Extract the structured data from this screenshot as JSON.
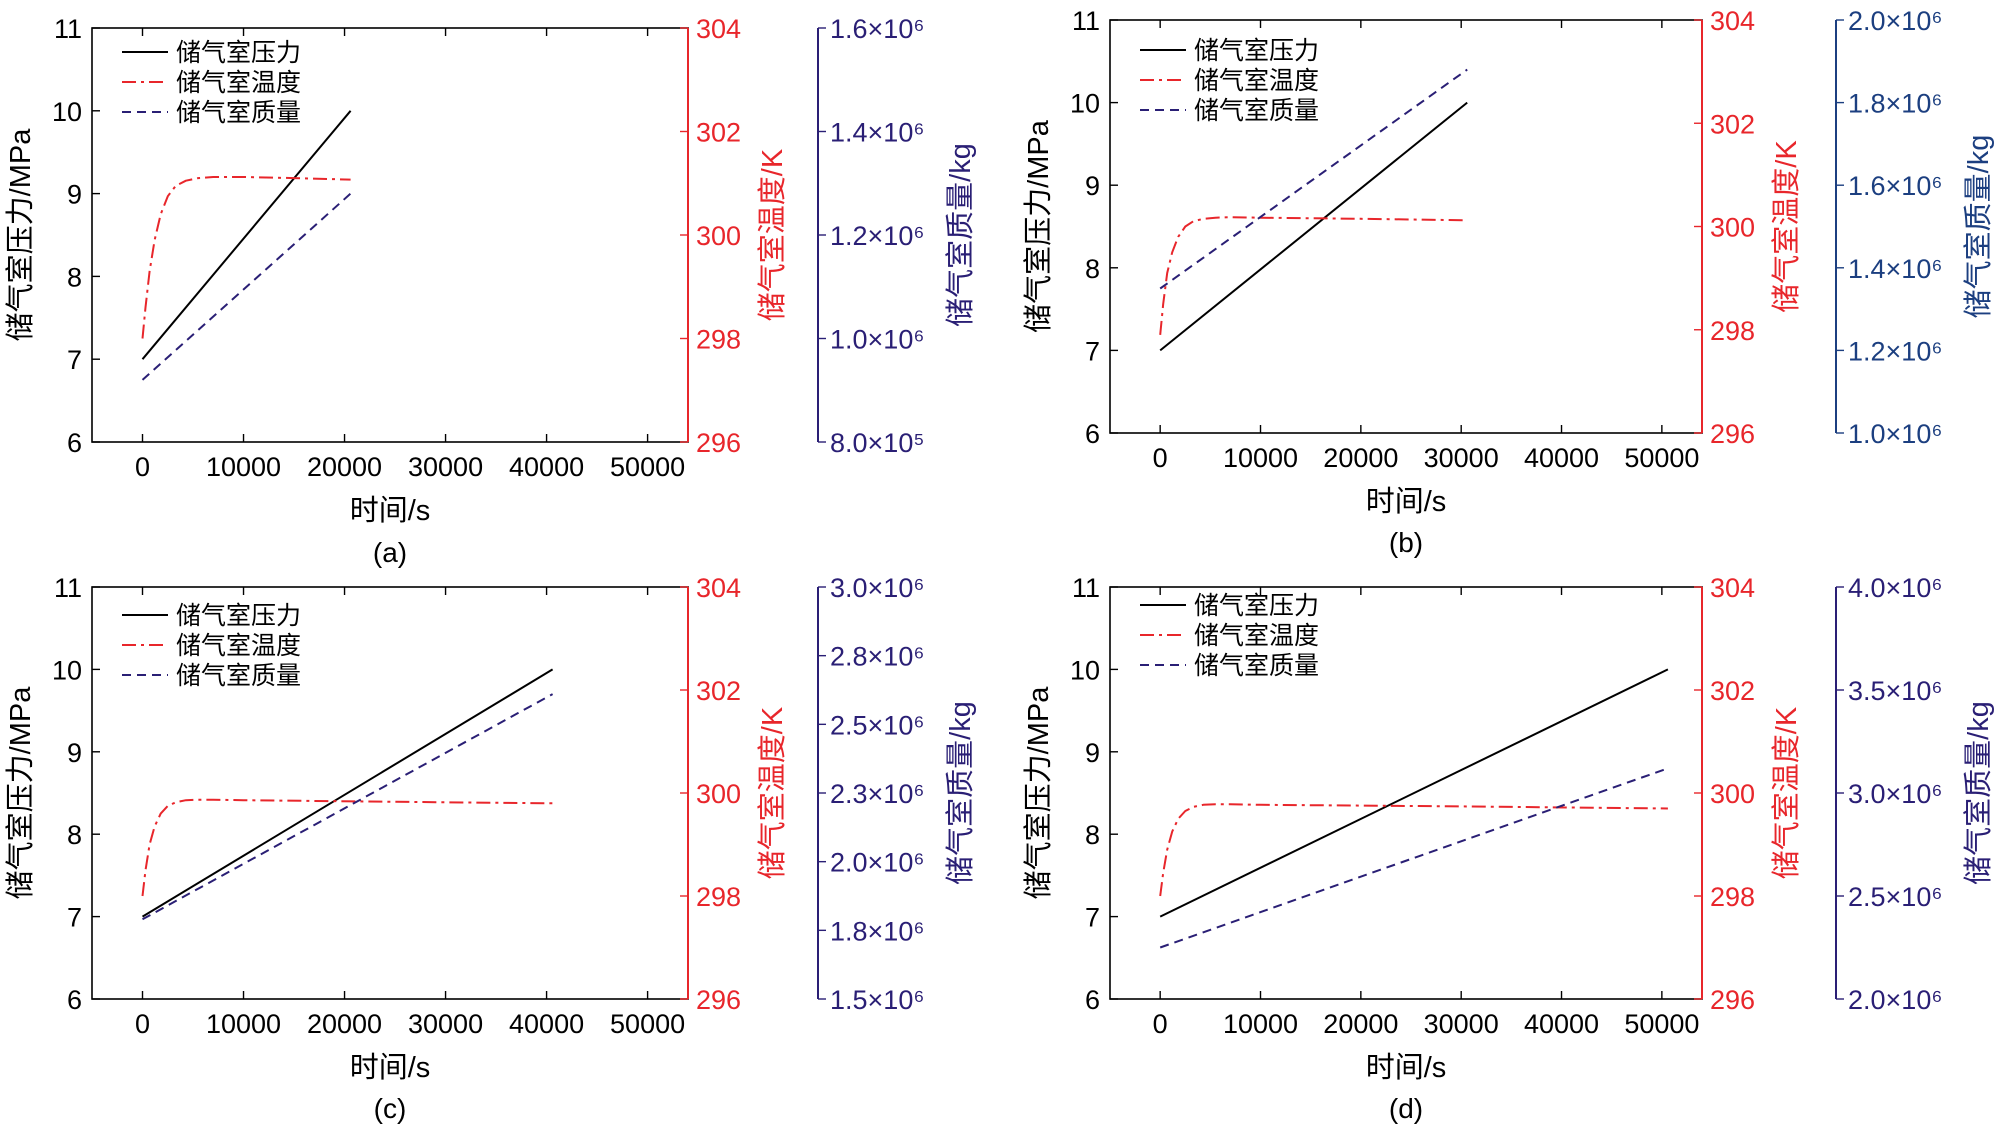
{
  "figure": {
    "colors": {
      "pressure": "#000000",
      "temperature": "#e8262b",
      "mass": "#2a1f75",
      "mass_axis_b": "#1c3f80"
    }
  },
  "chart_data": [
    {
      "type": "line",
      "caption": "(a)",
      "xlabel": "时间/s",
      "xlim": [
        -5000,
        54000
      ],
      "xticks": [
        0,
        10000,
        20000,
        30000,
        40000,
        50000
      ],
      "xtick_labels": [
        "0",
        "10000",
        "20000",
        "30000",
        "40000",
        "50000"
      ],
      "grid": false,
      "legend": {
        "placement": "top-left",
        "entries": [
          "储气室压力",
          "储气室温度",
          "储气室质量"
        ]
      },
      "axes": {
        "left": {
          "label": "储气室压力/MPa",
          "ylim": [
            6,
            11
          ],
          "ticks": [
            6,
            7,
            8,
            9,
            10,
            11
          ],
          "tick_labels": [
            "6",
            "7",
            "8",
            "9",
            "10",
            "11"
          ]
        },
        "right1": {
          "label": "储气室温度/K",
          "ylim": [
            296,
            304
          ],
          "ticks": [
            296,
            298,
            300,
            302,
            304
          ],
          "tick_labels": [
            "296",
            "298",
            "300",
            "302",
            "304"
          ]
        },
        "right2": {
          "label": "储气室质量/kg",
          "ylim": [
            800000,
            1600000
          ],
          "ticks": [
            800000,
            1000000,
            1200000,
            1400000,
            1600000
          ],
          "tick_labels": [
            "8.0×10⁵",
            "1.0×10⁶",
            "1.2×10⁶",
            "1.4×10⁶",
            "1.6×10⁶"
          ]
        }
      },
      "series": [
        {
          "name": "储气室压力",
          "axis": "left",
          "style": "solid",
          "x": [
            0,
            20600
          ],
          "y": [
            7.0,
            10.0
          ]
        },
        {
          "name": "储气室温度",
          "axis": "right1",
          "style": "dashdot",
          "x": [
            0,
            300,
            700,
            1200,
            1800,
            2500,
            3300,
            4300,
            5500,
            7000,
            10000,
            15000,
            20600
          ],
          "y": [
            298.0,
            298.6,
            299.3,
            299.9,
            300.4,
            300.75,
            300.95,
            301.05,
            301.1,
            301.12,
            301.12,
            301.1,
            301.07
          ]
        },
        {
          "name": "储气室质量",
          "axis": "right2",
          "style": "dashed",
          "x": [
            0,
            20600
          ],
          "y": [
            920000,
            1280000
          ]
        }
      ]
    },
    {
      "type": "line",
      "caption": "(b)",
      "xlabel": "时间/s",
      "xlim": [
        -5000,
        54000
      ],
      "xticks": [
        0,
        10000,
        20000,
        30000,
        40000,
        50000
      ],
      "xtick_labels": [
        "0",
        "10000",
        "20000",
        "30000",
        "40000",
        "50000"
      ],
      "grid": false,
      "legend": {
        "placement": "top-left",
        "entries": [
          "储气室压力",
          "储气室温度",
          "储气室质量"
        ]
      },
      "axes": {
        "left": {
          "label": "储气室压力/MPa",
          "ylim": [
            6,
            11
          ],
          "ticks": [
            6,
            7,
            8,
            9,
            10,
            11
          ],
          "tick_labels": [
            "6",
            "7",
            "8",
            "9",
            "10",
            "11"
          ]
        },
        "right1": {
          "label": "储气室温度/K",
          "ylim": [
            296,
            304
          ],
          "ticks": [
            296,
            298,
            300,
            302,
            304
          ],
          "tick_labels": [
            "296",
            "298",
            "300",
            "302",
            "304"
          ]
        },
        "right2": {
          "label": "储气室质量/kg",
          "ylim": [
            1000000,
            2000000
          ],
          "ticks": [
            1000000,
            1200000,
            1400000,
            1600000,
            1800000,
            2000000
          ],
          "tick_labels": [
            "1.0×10⁶",
            "1.2×10⁶",
            "1.4×10⁶",
            "1.6×10⁶",
            "1.8×10⁶",
            "2.0×10⁶"
          ]
        }
      },
      "series": [
        {
          "name": "储气室压力",
          "axis": "left",
          "style": "solid",
          "x": [
            0,
            30600
          ],
          "y": [
            7.0,
            10.0
          ]
        },
        {
          "name": "储气室温度",
          "axis": "right1",
          "style": "dashdot",
          "x": [
            0,
            300,
            700,
            1200,
            1800,
            2500,
            3300,
            4300,
            5500,
            7000,
            10000,
            20000,
            30600
          ],
          "y": [
            297.9,
            298.5,
            299.1,
            299.5,
            299.8,
            300.0,
            300.1,
            300.15,
            300.17,
            300.18,
            300.17,
            300.15,
            300.12
          ]
        },
        {
          "name": "储气室质量",
          "axis": "right2",
          "style": "dashed",
          "x": [
            0,
            30600
          ],
          "y": [
            1350000,
            1880000
          ]
        }
      ]
    },
    {
      "type": "line",
      "caption": "(c)",
      "xlabel": "时间/s",
      "xlim": [
        -5000,
        54000
      ],
      "xticks": [
        0,
        10000,
        20000,
        30000,
        40000,
        50000
      ],
      "xtick_labels": [
        "0",
        "10000",
        "20000",
        "30000",
        "40000",
        "50000"
      ],
      "grid": false,
      "legend": {
        "placement": "top-left",
        "entries": [
          "储气室压力",
          "储气室温度",
          "储气室质量"
        ]
      },
      "axes": {
        "left": {
          "label": "储气室压力/MPa",
          "ylim": [
            6,
            11
          ],
          "ticks": [
            6,
            7,
            8,
            9,
            10,
            11
          ],
          "tick_labels": [
            "6",
            "7",
            "8",
            "9",
            "10",
            "11"
          ]
        },
        "right1": {
          "label": "储气室温度/K",
          "ylim": [
            296,
            304
          ],
          "ticks": [
            296,
            298,
            300,
            302,
            304
          ],
          "tick_labels": [
            "296",
            "298",
            "300",
            "302",
            "304"
          ]
        },
        "right2": {
          "label": "储气室质量/kg",
          "ylim": [
            1500000,
            3000000
          ],
          "ticks": [
            1500000,
            1750000,
            2000000,
            2250000,
            2500000,
            2750000,
            3000000
          ],
          "tick_labels": [
            "1.5×10⁶",
            "1.8×10⁶",
            "2.0×10⁶",
            "2.3×10⁶",
            "2.5×10⁶",
            "2.8×10⁶",
            "3.0×10⁶"
          ]
        }
      },
      "series": [
        {
          "name": "储气室压力",
          "axis": "left",
          "style": "solid",
          "x": [
            0,
            40600
          ],
          "y": [
            7.0,
            10.0
          ]
        },
        {
          "name": "储气室温度",
          "axis": "right1",
          "style": "dashdot",
          "x": [
            0,
            300,
            700,
            1200,
            1800,
            2500,
            3300,
            4300,
            5500,
            7000,
            10000,
            25000,
            40600
          ],
          "y": [
            298.0,
            298.5,
            299.0,
            299.35,
            299.6,
            299.75,
            299.82,
            299.86,
            299.87,
            299.87,
            299.86,
            299.83,
            299.8
          ]
        },
        {
          "name": "储气室质量",
          "axis": "right2",
          "style": "dashed",
          "x": [
            0,
            40600
          ],
          "y": [
            1790000,
            2610000
          ]
        }
      ]
    },
    {
      "type": "line",
      "caption": "(d)",
      "xlabel": "时间/s",
      "xlim": [
        -5000,
        54000
      ],
      "xticks": [
        0,
        10000,
        20000,
        30000,
        40000,
        50000
      ],
      "xtick_labels": [
        "0",
        "10000",
        "20000",
        "30000",
        "40000",
        "50000"
      ],
      "grid": false,
      "legend": {
        "placement": "top-left",
        "entries": [
          "储气室压力",
          "储气室温度",
          "储气室质量"
        ]
      },
      "axes": {
        "left": {
          "label": "储气室压力/MPa",
          "ylim": [
            6,
            11
          ],
          "ticks": [
            6,
            7,
            8,
            9,
            10,
            11
          ],
          "tick_labels": [
            "6",
            "7",
            "8",
            "9",
            "10",
            "11"
          ]
        },
        "right1": {
          "label": "储气室温度/K",
          "ylim": [
            296,
            304
          ],
          "ticks": [
            296,
            298,
            300,
            302,
            304
          ],
          "tick_labels": [
            "296",
            "298",
            "300",
            "302",
            "304"
          ]
        },
        "right2": {
          "label": "储气室质量/kg",
          "ylim": [
            2000000,
            4000000
          ],
          "ticks": [
            2000000,
            2500000,
            3000000,
            3500000,
            4000000
          ],
          "tick_labels": [
            "2.0×10⁶",
            "2.5×10⁶",
            "3.0×10⁶",
            "3.5×10⁶",
            "4.0×10⁶"
          ]
        }
      },
      "series": [
        {
          "name": "储气室压力",
          "axis": "left",
          "style": "solid",
          "x": [
            0,
            50600
          ],
          "y": [
            7.0,
            10.0
          ]
        },
        {
          "name": "储气室温度",
          "axis": "right1",
          "style": "dashdot",
          "x": [
            0,
            300,
            700,
            1200,
            1800,
            2500,
            3300,
            4300,
            5500,
            7000,
            10000,
            30000,
            50600
          ],
          "y": [
            298.0,
            298.45,
            298.9,
            299.25,
            299.5,
            299.65,
            299.73,
            299.77,
            299.78,
            299.78,
            299.77,
            299.74,
            299.7
          ]
        },
        {
          "name": "储气室质量",
          "axis": "right2",
          "style": "dashed",
          "x": [
            0,
            50600
          ],
          "y": [
            2250000,
            3120000
          ]
        }
      ]
    }
  ]
}
